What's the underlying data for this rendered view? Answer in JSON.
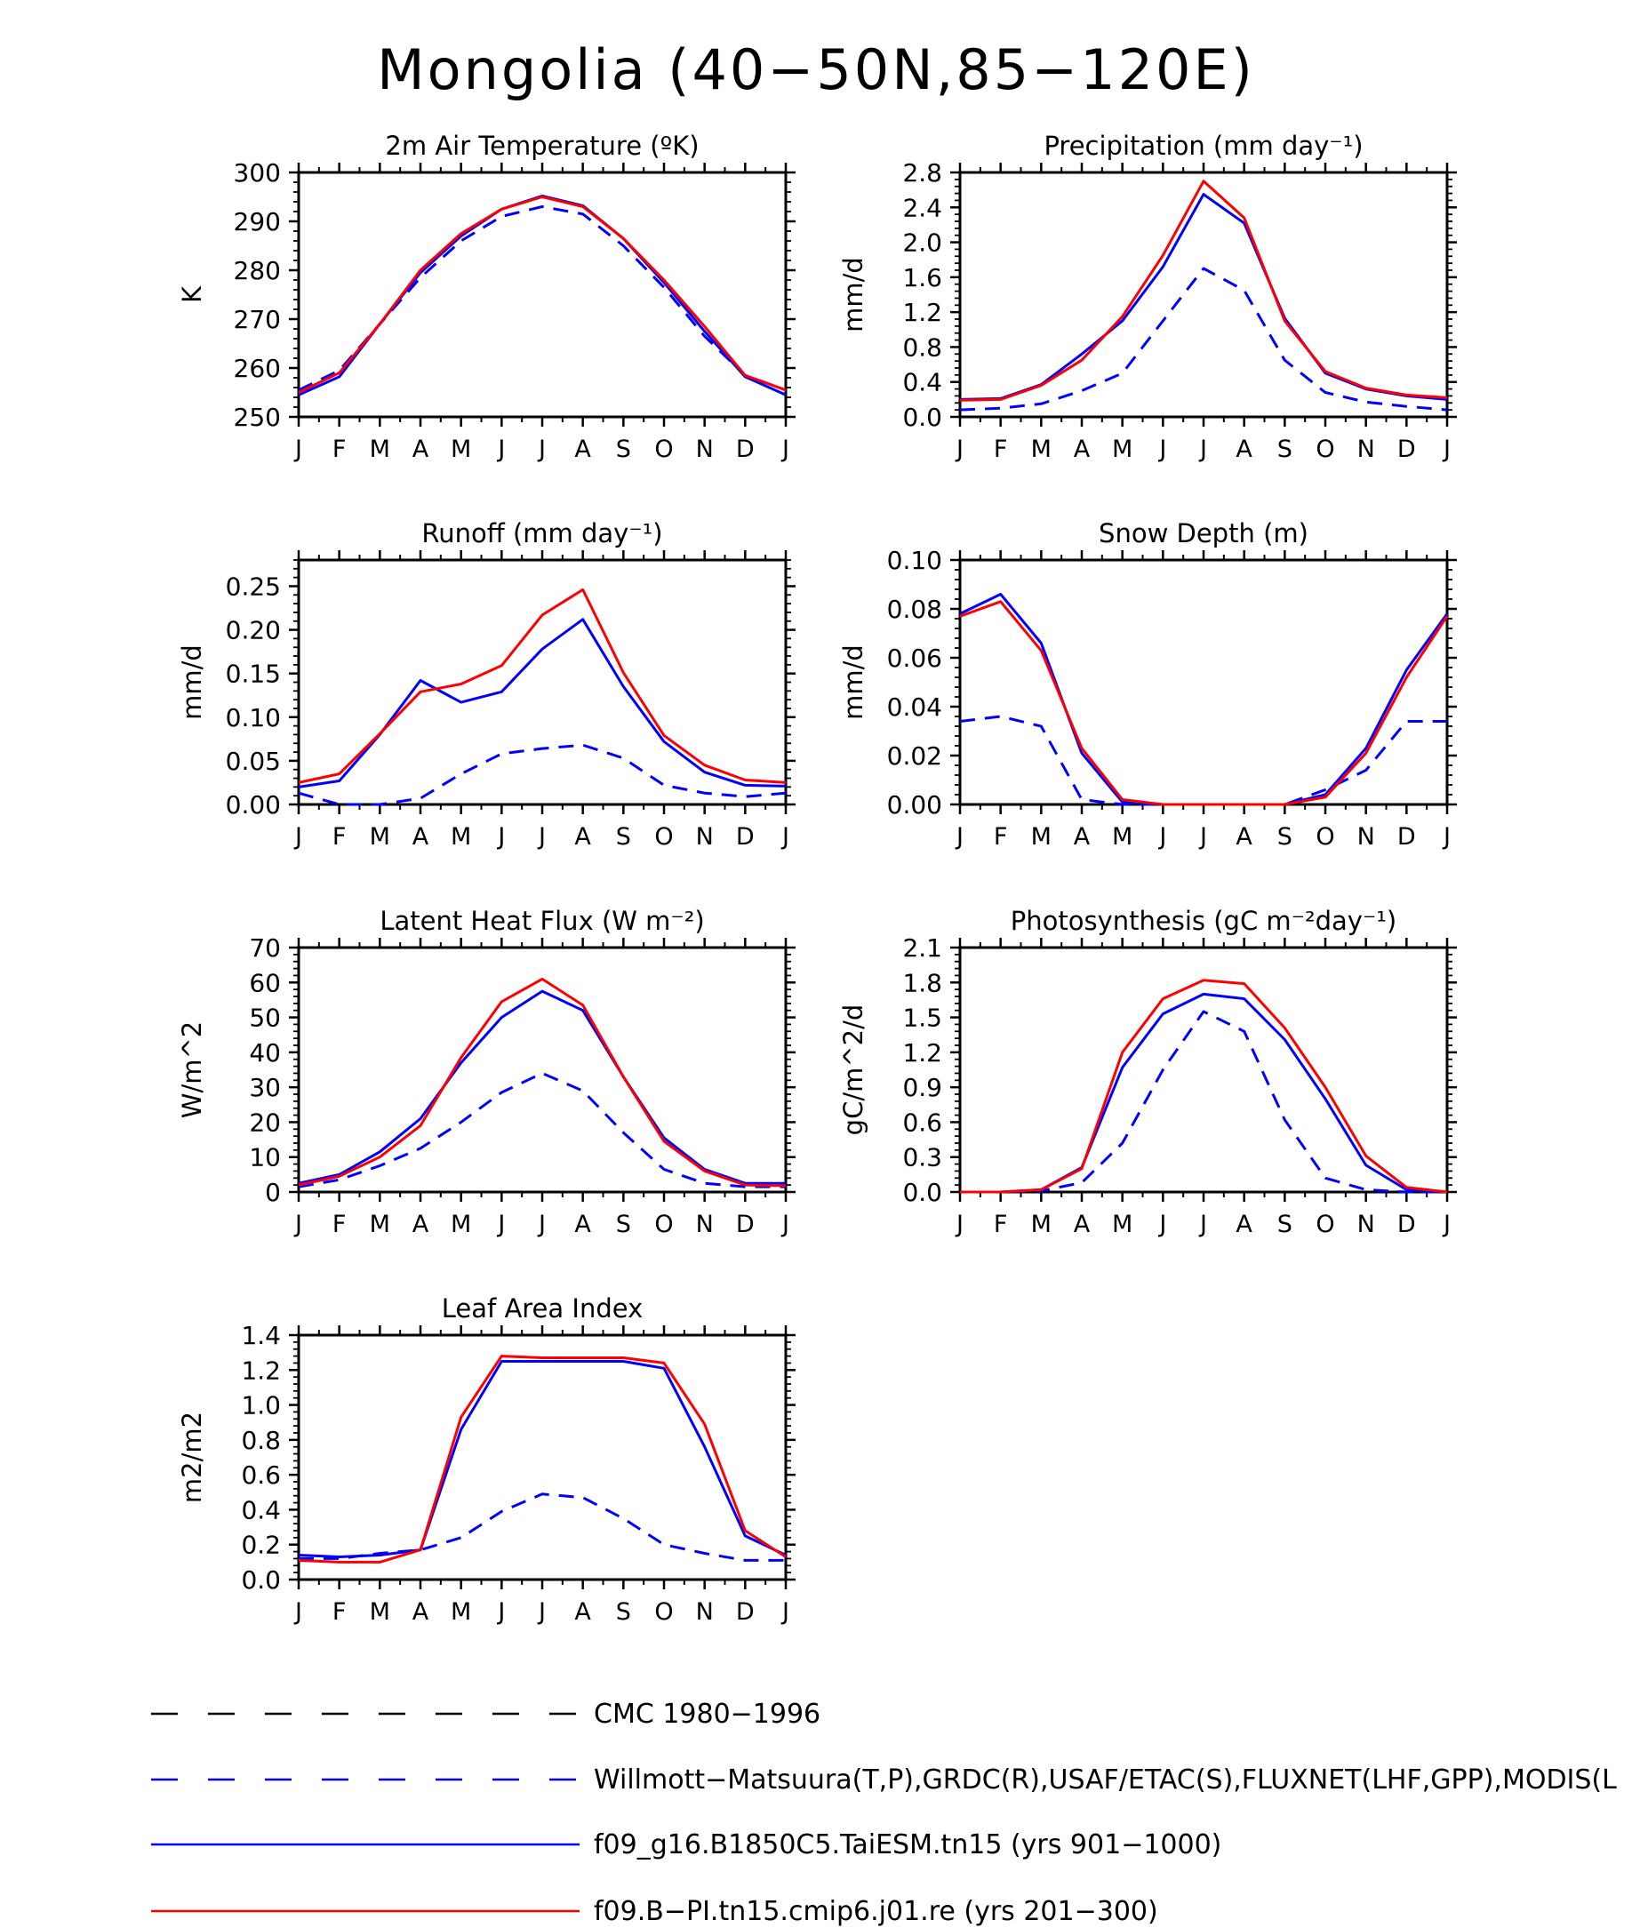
{
  "main_title": "Mongolia (40−50N,85−120E)",
  "months": [
    "J",
    "F",
    "M",
    "A",
    "M",
    "J",
    "J",
    "A",
    "S",
    "O",
    "N",
    "D",
    "J"
  ],
  "legend": [
    {
      "label": "CMC 1980−1996",
      "color": "#000000",
      "dash": true
    },
    {
      "label": "Willmott−Matsuura(T,P),GRDC(R),USAF/ETAC(S),FLUXNET(LHF,GPP),MODIS(L",
      "color": "#0000ff",
      "dash": true
    },
    {
      "label": "f09_g16.B1850C5.TaiESM.tn15 (yrs 901−1000)",
      "color": "#0000ff",
      "dash": false
    },
    {
      "label": "f09.B−PI.tn15.cmip6.j01.re (yrs 201−300)",
      "color": "#ff0000",
      "dash": false
    }
  ],
  "chart_data": [
    {
      "type": "line",
      "title": "2m Air Temperature (ºK)",
      "ylabel": "K",
      "ylim": [
        250,
        300
      ],
      "yticks": [
        "250",
        "260",
        "270",
        "280",
        "290",
        "300"
      ],
      "x": [
        "J",
        "F",
        "M",
        "A",
        "M",
        "J",
        "J",
        "A",
        "S",
        "O",
        "N",
        "D",
        "J"
      ],
      "series": [
        {
          "name": "Willmott−Matsuura(T,P),GRDC(R),USAF/ETAC(S),FLUXNET(LHF,GPP),MODIS(L",
          "color": "#0000ff",
          "dash": true,
          "values": [
            255.5,
            259.5,
            269,
            278.5,
            286,
            291,
            293,
            291.5,
            285,
            276.5,
            266.5,
            258.5,
            255.5
          ]
        },
        {
          "name": "f09_g16.B1850C5.TaiESM.tn15 (yrs 901−1000)",
          "color": "#0000ff",
          "dash": false,
          "values": [
            254.5,
            258.2,
            269,
            279.5,
            287,
            292.5,
            295.2,
            293.2,
            286.5,
            277.5,
            267.5,
            258.2,
            254.5
          ]
        },
        {
          "name": "f09.B−PI.tn15.cmip6.j01.re (yrs 201−300)",
          "color": "#ff0000",
          "dash": false,
          "values": [
            255,
            259,
            269,
            280,
            287.5,
            292.5,
            295,
            293,
            286.5,
            278,
            268.5,
            258.5,
            255.5
          ]
        }
      ]
    },
    {
      "type": "line",
      "title": "Precipitation (mm day⁻¹)",
      "ylabel": "mm/d",
      "ylim": [
        0,
        2.8
      ],
      "yticks": [
        "0.0",
        "0.4",
        "0.8",
        "1.2",
        "1.6",
        "2.0",
        "2.4",
        "2.8"
      ],
      "x": [
        "J",
        "F",
        "M",
        "A",
        "M",
        "J",
        "J",
        "A",
        "S",
        "O",
        "N",
        "D",
        "J"
      ],
      "series": [
        {
          "name": "Willmott−Matsuura(T,P),GRDC(R),USAF/ETAC(S),FLUXNET(LHF,GPP),MODIS(L",
          "color": "#0000ff",
          "dash": true,
          "values": [
            0.08,
            0.1,
            0.15,
            0.3,
            0.5,
            1.1,
            1.7,
            1.45,
            0.65,
            0.28,
            0.17,
            0.12,
            0.08
          ]
        },
        {
          "name": "f09_g16.B1850C5.TaiESM.tn15 (yrs 901−1000)",
          "color": "#0000ff",
          "dash": false,
          "values": [
            0.2,
            0.21,
            0.37,
            0.72,
            1.1,
            1.72,
            2.55,
            2.22,
            1.13,
            0.5,
            0.32,
            0.24,
            0.2
          ]
        },
        {
          "name": "f09.B−PI.tn15.cmip6.j01.re (yrs 201−300)",
          "color": "#ff0000",
          "dash": false,
          "values": [
            0.19,
            0.2,
            0.36,
            0.65,
            1.15,
            1.85,
            2.7,
            2.28,
            1.1,
            0.52,
            0.33,
            0.25,
            0.22
          ]
        }
      ]
    },
    {
      "type": "line",
      "title": "Runoff (mm day⁻¹)",
      "ylabel": "mm/d",
      "ylim": [
        0,
        0.28
      ],
      "yticks": [
        "0.00",
        "0.05",
        "0.10",
        "0.15",
        "0.20",
        "0.25"
      ],
      "x": [
        "J",
        "F",
        "M",
        "A",
        "M",
        "J",
        "J",
        "A",
        "S",
        "O",
        "N",
        "D",
        "J"
      ],
      "series": [
        {
          "name": "Willmott−Matsuura(T,P),GRDC(R),USAF/ETAC(S),FLUXNET(LHF,GPP),MODIS(L",
          "color": "#0000ff",
          "dash": true,
          "values": [
            0.013,
            0.0,
            0.0,
            0.007,
            0.035,
            0.058,
            0.064,
            0.068,
            0.053,
            0.022,
            0.013,
            0.009,
            0.013
          ]
        },
        {
          "name": "f09_g16.B1850C5.TaiESM.tn15 (yrs 901−1000)",
          "color": "#0000ff",
          "dash": false,
          "values": [
            0.02,
            0.027,
            0.08,
            0.142,
            0.117,
            0.129,
            0.178,
            0.212,
            0.135,
            0.072,
            0.037,
            0.022,
            0.021
          ]
        },
        {
          "name": "f09.B−PI.tn15.cmip6.j01.re (yrs 201−300)",
          "color": "#ff0000",
          "dash": false,
          "values": [
            0.025,
            0.035,
            0.081,
            0.129,
            0.138,
            0.159,
            0.217,
            0.246,
            0.151,
            0.079,
            0.045,
            0.028,
            0.025
          ]
        }
      ]
    },
    {
      "type": "line",
      "title": "Snow Depth (m)",
      "ylabel": "mm/d",
      "ylim": [
        0,
        0.1
      ],
      "yticks": [
        "0.00",
        "0.02",
        "0.04",
        "0.06",
        "0.08",
        "0.10"
      ],
      "x": [
        "J",
        "F",
        "M",
        "A",
        "M",
        "J",
        "J",
        "A",
        "S",
        "O",
        "N",
        "D",
        "J"
      ],
      "series": [
        {
          "name": "CMC 1980−1996",
          "color": "#000000",
          "dash": true,
          "values": [
            0,
            0,
            0,
            0,
            0,
            0,
            0,
            0,
            0,
            0,
            0,
            0,
            0
          ]
        },
        {
          "name": "Willmott−Matsuura(T,P),GRDC(R),USAF/ETAC(S),FLUXNET(LHF,GPP),MODIS(L",
          "color": "#0000ff",
          "dash": true,
          "values": [
            0.034,
            0.036,
            0.032,
            0.002,
            0.0,
            0.0,
            0.0,
            0.0,
            0.0,
            0.006,
            0.014,
            0.034,
            0.034
          ]
        },
        {
          "name": "f09_g16.B1850C5.TaiESM.tn15 (yrs 901−1000)",
          "color": "#0000ff",
          "dash": false,
          "values": [
            0.078,
            0.086,
            0.066,
            0.021,
            0.001,
            0.0,
            0.0,
            0.0,
            0.0,
            0.004,
            0.023,
            0.055,
            0.078
          ]
        },
        {
          "name": "f09.B−PI.tn15.cmip6.j01.re (yrs 201−300)",
          "color": "#ff0000",
          "dash": false,
          "values": [
            0.077,
            0.083,
            0.063,
            0.023,
            0.002,
            0.0,
            0.0,
            0.0,
            0.0,
            0.003,
            0.021,
            0.052,
            0.077
          ]
        }
      ]
    },
    {
      "type": "line",
      "title": "Latent Heat Flux (W m⁻²)",
      "ylabel": "W/m^2",
      "ylim": [
        0,
        70
      ],
      "yticks": [
        "0",
        "10",
        "20",
        "30",
        "40",
        "50",
        "60",
        "70"
      ],
      "x": [
        "J",
        "F",
        "M",
        "A",
        "M",
        "J",
        "J",
        "A",
        "S",
        "O",
        "N",
        "D",
        "J"
      ],
      "series": [
        {
          "name": "Willmott−Matsuura(T,P),GRDC(R),USAF/ETAC(S),FLUXNET(LHF,GPP),MODIS(L",
          "color": "#0000ff",
          "dash": true,
          "values": [
            1.5,
            3.5,
            7.5,
            12.5,
            20,
            28.5,
            34,
            29,
            17,
            6.5,
            2.5,
            1.5,
            1.5
          ]
        },
        {
          "name": "f09_g16.B1850C5.TaiESM.tn15 (yrs 901−1000)",
          "color": "#0000ff",
          "dash": false,
          "values": [
            2.5,
            5,
            11.5,
            21,
            37,
            50,
            57.5,
            52,
            33,
            15.5,
            6.5,
            2.5,
            2.5
          ]
        },
        {
          "name": "f09.B−PI.tn15.cmip6.j01.re (yrs 201−300)",
          "color": "#ff0000",
          "dash": false,
          "values": [
            2,
            4.5,
            10,
            19,
            38.5,
            54.5,
            61,
            53.5,
            33,
            14.5,
            6,
            2,
            1.8
          ]
        }
      ]
    },
    {
      "type": "line",
      "title": "Photosynthesis (gC m⁻²day⁻¹)",
      "ylabel": "gC/m^2/d",
      "ylim": [
        0,
        2.1
      ],
      "yticks": [
        "0.0",
        "0.3",
        "0.6",
        "0.9",
        "1.2",
        "1.5",
        "1.8",
        "2.1"
      ],
      "x": [
        "J",
        "F",
        "M",
        "A",
        "M",
        "J",
        "J",
        "A",
        "S",
        "O",
        "N",
        "D",
        "J"
      ],
      "series": [
        {
          "name": "Willmott−Matsuura(T,P),GRDC(R),USAF/ETAC(S),FLUXNET(LHF,GPP),MODIS(L",
          "color": "#0000ff",
          "dash": true,
          "values": [
            0,
            0,
            0.01,
            0.08,
            0.42,
            1.05,
            1.55,
            1.38,
            0.62,
            0.12,
            0.02,
            0,
            0
          ]
        },
        {
          "name": "f09_g16.B1850C5.TaiESM.tn15 (yrs 901−1000)",
          "color": "#0000ff",
          "dash": false,
          "values": [
            0,
            0,
            0.02,
            0.21,
            1.07,
            1.53,
            1.7,
            1.66,
            1.31,
            0.8,
            0.23,
            0.02,
            0
          ]
        },
        {
          "name": "f09.B−PI.tn15.cmip6.j01.re (yrs 201−300)",
          "color": "#ff0000",
          "dash": false,
          "values": [
            0,
            0,
            0.02,
            0.2,
            1.2,
            1.66,
            1.82,
            1.79,
            1.41,
            0.9,
            0.31,
            0.04,
            0
          ]
        }
      ]
    },
    {
      "type": "line",
      "title": "Leaf Area Index",
      "ylabel": "m2/m2",
      "ylim": [
        0,
        1.4
      ],
      "yticks": [
        "0.0",
        "0.2",
        "0.4",
        "0.6",
        "0.8",
        "1.0",
        "1.2",
        "1.4"
      ],
      "x": [
        "J",
        "F",
        "M",
        "A",
        "M",
        "J",
        "J",
        "A",
        "S",
        "O",
        "N",
        "D",
        "J"
      ],
      "series": [
        {
          "name": "Willmott−Matsuura(T,P),GRDC(R),USAF/ETAC(S),FLUXNET(LHF,GPP),MODIS(L",
          "color": "#0000ff",
          "dash": true,
          "values": [
            0.12,
            0.12,
            0.15,
            0.17,
            0.24,
            0.39,
            0.49,
            0.47,
            0.35,
            0.2,
            0.15,
            0.11,
            0.11
          ]
        },
        {
          "name": "f09_g16.B1850C5.TaiESM.tn15 (yrs 901−1000)",
          "color": "#0000ff",
          "dash": false,
          "values": [
            0.14,
            0.13,
            0.14,
            0.17,
            0.86,
            1.25,
            1.25,
            1.25,
            1.25,
            1.21,
            0.76,
            0.25,
            0.14
          ]
        },
        {
          "name": "f09.B−PI.tn15.cmip6.j01.re (yrs 201−300)",
          "color": "#ff0000",
          "dash": false,
          "values": [
            0.11,
            0.1,
            0.1,
            0.17,
            0.93,
            1.28,
            1.27,
            1.27,
            1.27,
            1.24,
            0.89,
            0.28,
            0.13
          ]
        }
      ]
    }
  ]
}
